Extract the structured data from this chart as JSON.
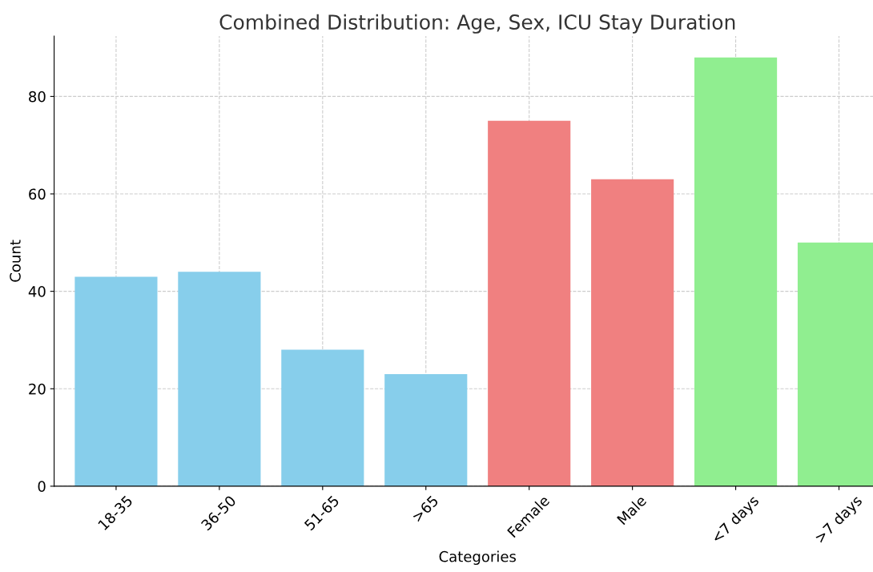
{
  "chart_data": {
    "type": "bar",
    "title": "Combined Distribution: Age, Sex, ICU Stay Duration",
    "xlabel": "Categories",
    "ylabel": "Count",
    "categories": [
      "18-35",
      "36-50",
      "51-65",
      ">65",
      "Female",
      "Male",
      "<7 days",
      ">7 days"
    ],
    "values": [
      43,
      44,
      28,
      23,
      75,
      63,
      88,
      50
    ],
    "colors": [
      "#87ceeb",
      "#87ceeb",
      "#87ceeb",
      "#87ceeb",
      "#f08080",
      "#f08080",
      "#90ee90",
      "#90ee90"
    ],
    "ylim": [
      0,
      92.4
    ],
    "yticks": [
      0,
      20,
      40,
      60,
      80
    ],
    "grid": true
  }
}
